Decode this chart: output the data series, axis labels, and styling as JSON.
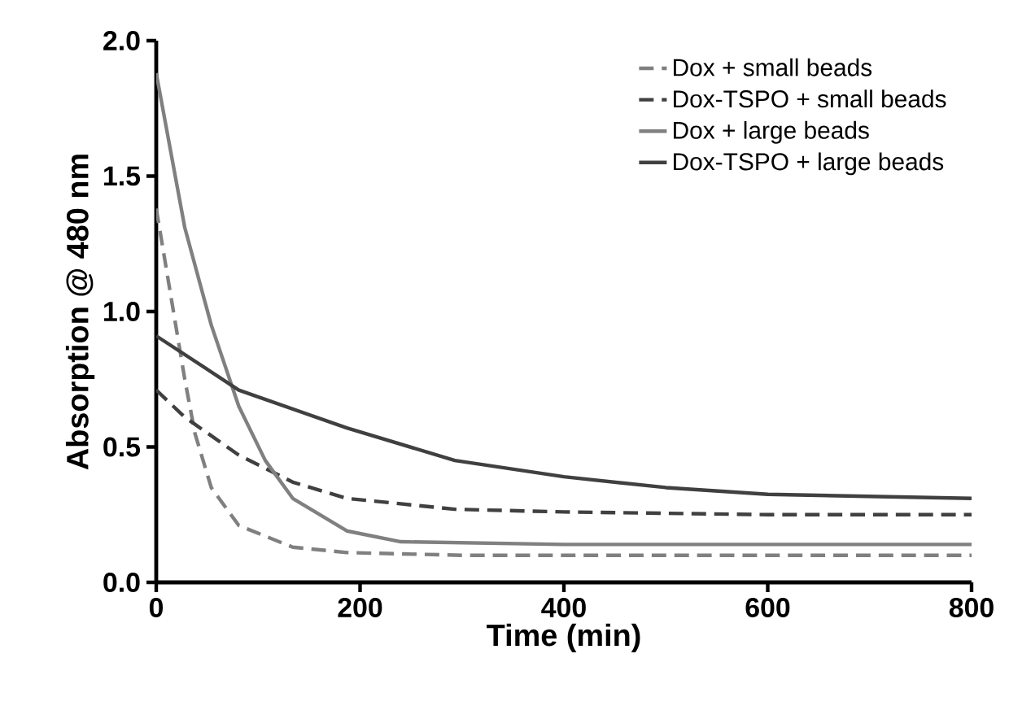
{
  "chart_data": {
    "type": "line",
    "xlabel": "Time (min)",
    "ylabel": "Absorption @ 480 nm",
    "xlim": [
      0,
      800
    ],
    "ylim": [
      0,
      2.0
    ],
    "xticks": [
      0,
      200,
      400,
      600,
      800
    ],
    "yticks": [
      {
        "value": 0,
        "label": "0.0"
      },
      {
        "value": 0.5,
        "label": "0.5"
      },
      {
        "value": 1.0,
        "label": "1.0"
      },
      {
        "value": 1.5,
        "label": "1.5"
      },
      {
        "value": 2.0,
        "label": "2.0"
      }
    ],
    "grid": false,
    "legend": "top right",
    "marker": "none",
    "series": [
      {
        "name": "Dox + small beads",
        "color": "#808080",
        "line_style": "dashed",
        "x": [
          0,
          28,
          38,
          54,
          81,
          134,
          187,
          300,
          500,
          800
        ],
        "values": [
          1.38,
          0.75,
          0.55,
          0.35,
          0.21,
          0.13,
          0.11,
          0.1,
          0.1,
          0.1
        ]
      },
      {
        "name": "Dox-TSPO + small beads",
        "color": "#404040",
        "line_style": "dashed",
        "x": [
          0,
          28,
          81,
          134,
          187,
          293,
          400,
          600,
          800
        ],
        "values": [
          0.71,
          0.61,
          0.47,
          0.37,
          0.31,
          0.27,
          0.26,
          0.25,
          0.25
        ]
      },
      {
        "name": "Dox + large beads",
        "color": "#808080",
        "line_style": "solid",
        "x": [
          0,
          28,
          54,
          81,
          107,
          134,
          187,
          240,
          400,
          800
        ],
        "values": [
          1.88,
          1.31,
          0.95,
          0.65,
          0.45,
          0.31,
          0.19,
          0.15,
          0.14,
          0.14
        ]
      },
      {
        "name": "Dox-TSPO + large beads",
        "color": "#404040",
        "line_style": "solid",
        "x": [
          0,
          81,
          187,
          293,
          400,
          500,
          600,
          800
        ],
        "values": [
          0.91,
          0.71,
          0.57,
          0.45,
          0.39,
          0.35,
          0.325,
          0.31
        ]
      }
    ]
  }
}
